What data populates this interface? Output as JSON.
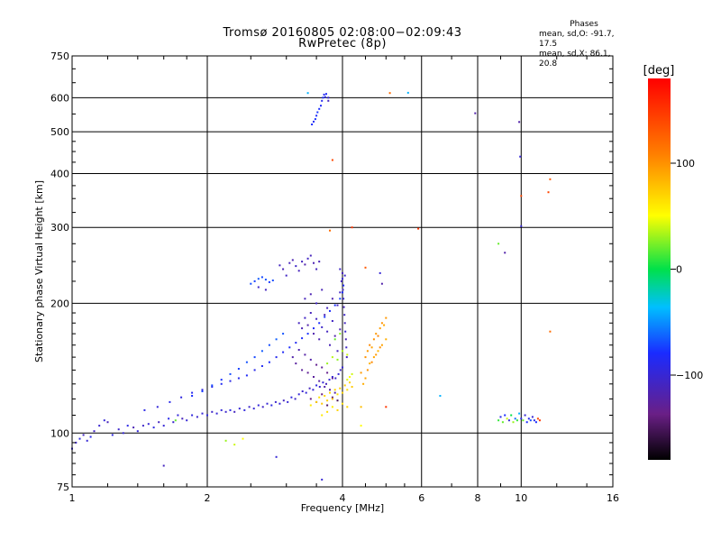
{
  "title": {
    "line1": "Tromsø 20160805 02:08:00−02:09:43",
    "line2": "RwPretec (8p)"
  },
  "phase_stats": {
    "heading": "Phases",
    "line_o": "mean, sd,O: -91.7, 17.5",
    "line_x": "mean, sd,X:  86.1, 20.8"
  },
  "colorbar": {
    "label": "[deg]",
    "ticks": [
      {
        "value": 100,
        "label": "100"
      },
      {
        "value": 0,
        "label": "0"
      },
      {
        "value": -100,
        "label": "−100"
      }
    ],
    "range": [
      -180,
      180
    ]
  },
  "chart_data": {
    "type": "scatter",
    "xlabel": "Frequency [MHz]",
    "ylabel": "Stationary phase Virtual Height [km]",
    "xscale": "log",
    "yscale": "log",
    "xlim": [
      1,
      16
    ],
    "ylim": [
      75,
      750
    ],
    "xticks": [
      {
        "value": 1,
        "label": "1"
      },
      {
        "value": 2,
        "label": "2"
      },
      {
        "value": 4,
        "label": "4"
      },
      {
        "value": 6,
        "label": "6"
      },
      {
        "value": 8,
        "label": "8"
      },
      {
        "value": 10,
        "label": "10"
      },
      {
        "value": 16,
        "label": "16"
      }
    ],
    "yticks": [
      {
        "value": 75,
        "label": "75"
      },
      {
        "value": 100,
        "label": "100"
      },
      {
        "value": 200,
        "label": "200"
      },
      {
        "value": 300,
        "label": "300"
      },
      {
        "value": 400,
        "label": "400"
      },
      {
        "value": 500,
        "label": "500"
      },
      {
        "value": 600,
        "label": "600"
      },
      {
        "value": 750,
        "label": "750"
      }
    ],
    "grid": true,
    "point_color_key": "phase [deg]",
    "points": [
      [
        1.0,
        92,
        -100
      ],
      [
        1.02,
        95,
        -105
      ],
      [
        1.04,
        97,
        -95
      ],
      [
        1.06,
        99,
        -110
      ],
      [
        1.08,
        96,
        -100
      ],
      [
        1.1,
        98,
        -90
      ],
      [
        1.12,
        101,
        -108
      ],
      [
        1.15,
        104,
        -102
      ],
      [
        1.18,
        107,
        -98
      ],
      [
        1.2,
        106,
        -112
      ],
      [
        1.23,
        99,
        -95
      ],
      [
        1.27,
        102,
        -104
      ],
      [
        1.3,
        100,
        -100
      ],
      [
        1.33,
        104,
        -92
      ],
      [
        1.37,
        103,
        -115
      ],
      [
        1.4,
        101,
        -98
      ],
      [
        1.44,
        104,
        -106
      ],
      [
        1.48,
        105,
        -100
      ],
      [
        1.52,
        103,
        -95
      ],
      [
        1.56,
        106,
        -110
      ],
      [
        1.6,
        104,
        -100
      ],
      [
        1.64,
        108,
        -90
      ],
      [
        1.68,
        106,
        -104
      ],
      [
        1.72,
        110,
        -98
      ],
      [
        1.76,
        108,
        -112
      ],
      [
        1.8,
        107,
        -100
      ],
      [
        1.85,
        110,
        -96
      ],
      [
        1.9,
        109,
        -104
      ],
      [
        1.95,
        111,
        -100
      ],
      [
        2.0,
        110,
        -94
      ],
      [
        2.05,
        112,
        -106
      ],
      [
        2.1,
        111,
        -100
      ],
      [
        2.15,
        113,
        -98
      ],
      [
        2.2,
        112,
        -104
      ],
      [
        2.25,
        113,
        -92
      ],
      [
        2.3,
        112,
        -110
      ],
      [
        2.36,
        114,
        -100
      ],
      [
        2.42,
        113,
        -96
      ],
      [
        2.48,
        115,
        -104
      ],
      [
        2.54,
        114,
        -100
      ],
      [
        2.6,
        116,
        -98
      ],
      [
        2.66,
        115,
        -108
      ],
      [
        2.72,
        117,
        -100
      ],
      [
        2.78,
        116,
        -94
      ],
      [
        2.84,
        118,
        -104
      ],
      [
        2.9,
        117,
        -100
      ],
      [
        2.96,
        119,
        -110
      ],
      [
        3.02,
        118,
        -100
      ],
      [
        3.08,
        121,
        -96
      ],
      [
        3.14,
        120,
        -106
      ],
      [
        3.2,
        123,
        -100
      ],
      [
        3.26,
        125,
        -104
      ],
      [
        3.32,
        124,
        -98
      ],
      [
        3.38,
        127,
        -110
      ],
      [
        3.44,
        126,
        -100
      ],
      [
        3.5,
        129,
        -94
      ],
      [
        3.56,
        128,
        -104
      ],
      [
        3.62,
        131,
        -100
      ],
      [
        3.68,
        130,
        -112
      ],
      [
        3.74,
        133,
        -100
      ],
      [
        3.8,
        135,
        -96
      ],
      [
        3.86,
        134,
        -104
      ],
      [
        3.92,
        137,
        -100
      ],
      [
        3.96,
        140,
        -110
      ],
      [
        4.0,
        142,
        -100
      ],
      [
        1.45,
        113,
        -92
      ],
      [
        1.55,
        115,
        -98
      ],
      [
        1.65,
        118,
        -90
      ],
      [
        1.75,
        121,
        -95
      ],
      [
        1.85,
        124,
        -88
      ],
      [
        1.95,
        126,
        -94
      ],
      [
        2.05,
        128,
        -90
      ],
      [
        2.15,
        130,
        -86
      ],
      [
        2.25,
        132,
        -92
      ],
      [
        2.35,
        134,
        -88
      ],
      [
        2.45,
        136,
        -84
      ],
      [
        2.55,
        140,
        -90
      ],
      [
        2.65,
        143,
        -86
      ],
      [
        2.75,
        146,
        -82
      ],
      [
        2.85,
        150,
        -88
      ],
      [
        2.95,
        154,
        -84
      ],
      [
        3.05,
        158,
        -80
      ],
      [
        3.15,
        162,
        -86
      ],
      [
        3.25,
        166,
        -82
      ],
      [
        3.35,
        170,
        -78
      ],
      [
        3.45,
        175,
        -84
      ],
      [
        3.55,
        180,
        -80
      ],
      [
        3.65,
        186,
        -76
      ],
      [
        3.75,
        192,
        -82
      ],
      [
        3.85,
        198,
        -78
      ],
      [
        3.95,
        205,
        -74
      ],
      [
        4.0,
        212,
        -80
      ],
      [
        4.02,
        220,
        -84
      ],
      [
        1.85,
        122,
        -80
      ],
      [
        1.95,
        125,
        -76
      ],
      [
        2.05,
        129,
        -72
      ],
      [
        2.15,
        133,
        -78
      ],
      [
        2.25,
        137,
        -70
      ],
      [
        2.35,
        141,
        -74
      ],
      [
        2.45,
        146,
        -68
      ],
      [
        2.55,
        150,
        -72
      ],
      [
        2.65,
        155,
        -66
      ],
      [
        2.75,
        160,
        -70
      ],
      [
        2.85,
        165,
        -64
      ],
      [
        2.95,
        170,
        -68
      ],
      [
        2.5,
        222,
        -70
      ],
      [
        2.55,
        225,
        -74
      ],
      [
        2.6,
        228,
        -66
      ],
      [
        2.65,
        230,
        -72
      ],
      [
        2.7,
        227,
        -68
      ],
      [
        2.75,
        224,
        -76
      ],
      [
        2.8,
        226,
        -70
      ],
      [
        2.6,
        218,
        -105
      ],
      [
        2.7,
        215,
        -110
      ],
      [
        2.9,
        245,
        -110
      ],
      [
        2.95,
        240,
        -115
      ],
      [
        3.0,
        232,
        -108
      ],
      [
        3.05,
        248,
        -112
      ],
      [
        3.1,
        252,
        -116
      ],
      [
        3.15,
        244,
        -106
      ],
      [
        3.2,
        238,
        -112
      ],
      [
        3.25,
        250,
        -110
      ],
      [
        3.3,
        246,
        -118
      ],
      [
        3.35,
        254,
        -108
      ],
      [
        3.4,
        258,
        -112
      ],
      [
        3.45,
        248,
        -116
      ],
      [
        3.5,
        240,
        -110
      ],
      [
        3.55,
        250,
        -114
      ],
      [
        3.2,
        180,
        -110
      ],
      [
        3.25,
        175,
        -115
      ],
      [
        3.3,
        185,
        -108
      ],
      [
        3.35,
        178,
        -120
      ],
      [
        3.4,
        190,
        -112
      ],
      [
        3.45,
        170,
        -118
      ],
      [
        3.5,
        184,
        -110
      ],
      [
        3.55,
        165,
        -116
      ],
      [
        3.6,
        176,
        -106
      ],
      [
        3.65,
        188,
        -118
      ],
      [
        3.7,
        172,
        -110
      ],
      [
        3.75,
        160,
        -114
      ],
      [
        3.8,
        182,
        -108
      ],
      [
        3.85,
        168,
        -120
      ],
      [
        3.9,
        155,
        -112
      ],
      [
        3.95,
        174,
        -116
      ],
      [
        3.1,
        150,
        -120
      ],
      [
        3.15,
        145,
        -125
      ],
      [
        3.2,
        156,
        -118
      ],
      [
        3.25,
        140,
        -128
      ],
      [
        3.3,
        152,
        -122
      ],
      [
        3.35,
        138,
        -130
      ],
      [
        3.4,
        148,
        -120
      ],
      [
        3.45,
        135,
        -126
      ],
      [
        3.5,
        144,
        -132
      ],
      [
        3.55,
        132,
        -122
      ],
      [
        3.6,
        142,
        -128
      ],
      [
        3.65,
        128,
        -120
      ],
      [
        3.7,
        138,
        -134
      ],
      [
        3.75,
        126,
        -124
      ],
      [
        3.8,
        134,
        -130
      ],
      [
        3.85,
        124,
        -122
      ],
      [
        3.3,
        205,
        -112
      ],
      [
        3.4,
        210,
        -116
      ],
      [
        3.5,
        200,
        -108
      ],
      [
        3.6,
        215,
        -114
      ],
      [
        3.7,
        195,
        -110
      ],
      [
        3.8,
        205,
        -118
      ],
      [
        3.9,
        198,
        -112
      ],
      [
        3.95,
        212,
        -108
      ],
      [
        4.0,
        228,
        -100
      ],
      [
        4.01,
        215,
        -110
      ],
      [
        4.02,
        205,
        -104
      ],
      [
        4.03,
        196,
        -112
      ],
      [
        4.04,
        188,
        -106
      ],
      [
        4.05,
        180,
        -110
      ],
      [
        4.06,
        172,
        -102
      ],
      [
        4.07,
        165,
        -114
      ],
      [
        4.08,
        158,
        -106
      ],
      [
        4.09,
        150,
        -110
      ],
      [
        3.95,
        240,
        -106
      ],
      [
        4.0,
        235,
        -112
      ],
      [
        4.05,
        232,
        -104
      ],
      [
        3.98,
        225,
        -108
      ],
      [
        3.4,
        120,
        -140
      ],
      [
        3.5,
        118,
        -145
      ],
      [
        3.6,
        123,
        -138
      ],
      [
        3.7,
        116,
        -148
      ],
      [
        3.8,
        121,
        -142
      ],
      [
        3.9,
        119,
        -150
      ],
      [
        3.4,
        116,
        60
      ],
      [
        3.5,
        118,
        70
      ],
      [
        3.55,
        121,
        64
      ],
      [
        3.6,
        117,
        76
      ],
      [
        3.65,
        122,
        68
      ],
      [
        3.7,
        119,
        72
      ],
      [
        3.75,
        124,
        66
      ],
      [
        3.8,
        120,
        78
      ],
      [
        3.85,
        126,
        70
      ],
      [
        3.9,
        123,
        62
      ],
      [
        3.95,
        127,
        74
      ],
      [
        4.0,
        124,
        68
      ],
      [
        4.05,
        129,
        76
      ],
      [
        4.1,
        126,
        64
      ],
      [
        4.15,
        131,
        70
      ],
      [
        4.2,
        128,
        74
      ],
      [
        4.1,
        133,
        44
      ],
      [
        4.15,
        135,
        50
      ],
      [
        4.2,
        137,
        40
      ],
      [
        3.6,
        110,
        60
      ],
      [
        3.7,
        112,
        66
      ],
      [
        3.8,
        115,
        58
      ],
      [
        3.9,
        113,
        70
      ],
      [
        4.0,
        117,
        62
      ],
      [
        4.1,
        115,
        68
      ],
      [
        3.7,
        145,
        30
      ],
      [
        3.8,
        150,
        36
      ],
      [
        3.9,
        148,
        28
      ],
      [
        4.0,
        155,
        34
      ],
      [
        4.1,
        152,
        40
      ],
      [
        3.85,
        165,
        20
      ],
      [
        3.95,
        170,
        26
      ],
      [
        4.5,
        150,
        100
      ],
      [
        4.55,
        155,
        96
      ],
      [
        4.6,
        160,
        104
      ],
      [
        4.65,
        158,
        92
      ],
      [
        4.7,
        165,
        100
      ],
      [
        4.75,
        170,
        96
      ],
      [
        4.8,
        168,
        106
      ],
      [
        4.85,
        175,
        94
      ],
      [
        4.9,
        180,
        100
      ],
      [
        4.95,
        178,
        90
      ],
      [
        5.0,
        185,
        98
      ],
      [
        4.6,
        145,
        86
      ],
      [
        4.7,
        150,
        90
      ],
      [
        4.8,
        155,
        84
      ],
      [
        4.9,
        160,
        92
      ],
      [
        5.0,
        165,
        86
      ],
      [
        4.55,
        140,
        100
      ],
      [
        4.65,
        146,
        104
      ],
      [
        4.75,
        152,
        96
      ],
      [
        4.85,
        158,
        100
      ],
      [
        4.45,
        130,
        88
      ],
      [
        4.5,
        134,
        92
      ],
      [
        4.4,
        138,
        96
      ],
      [
        3.42,
        520,
        -80
      ],
      [
        3.45,
        528,
        -85
      ],
      [
        3.48,
        535,
        -78
      ],
      [
        3.5,
        545,
        -82
      ],
      [
        3.52,
        555,
        -76
      ],
      [
        3.55,
        565,
        -80
      ],
      [
        3.58,
        575,
        -84
      ],
      [
        3.6,
        590,
        -88
      ],
      [
        3.62,
        600,
        -82
      ],
      [
        3.64,
        610,
        -86
      ],
      [
        3.66,
        602,
        -90
      ],
      [
        3.68,
        612,
        -84
      ],
      [
        3.35,
        615,
        -40
      ],
      [
        3.72,
        590,
        -110
      ],
      [
        3.72,
        600,
        -100
      ],
      [
        3.75,
        295,
        120
      ],
      [
        3.8,
        430,
        140
      ],
      [
        4.2,
        300,
        150
      ],
      [
        4.5,
        242,
        130
      ],
      [
        4.85,
        235,
        -100
      ],
      [
        4.9,
        222,
        -120
      ],
      [
        5.1,
        615,
        120
      ],
      [
        5.6,
        616,
        -40
      ],
      [
        5.9,
        298,
        150
      ],
      [
        6.6,
        122,
        -40
      ],
      [
        7.9,
        552,
        -120
      ],
      [
        9.9,
        527,
        -120
      ],
      [
        9.95,
        438,
        -100
      ],
      [
        10.0,
        302,
        -100
      ],
      [
        10.0,
        355,
        140
      ],
      [
        11.5,
        362,
        140
      ],
      [
        11.6,
        388,
        130
      ],
      [
        11.6,
        172,
        120
      ],
      [
        8.9,
        275,
        20
      ],
      [
        9.2,
        262,
        -120
      ],
      [
        8.9,
        107,
        10
      ],
      [
        9.0,
        109,
        -90
      ],
      [
        9.1,
        106,
        20
      ],
      [
        9.2,
        110,
        -80
      ],
      [
        9.3,
        108,
        40
      ],
      [
        9.4,
        107,
        -100
      ],
      [
        9.5,
        110,
        0
      ],
      [
        9.6,
        106,
        30
      ],
      [
        9.7,
        108,
        -60
      ],
      [
        9.8,
        107,
        10
      ],
      [
        9.9,
        111,
        -40
      ],
      [
        10.0,
        108,
        -90
      ],
      [
        10.1,
        107,
        20
      ],
      [
        10.2,
        110,
        -100
      ],
      [
        10.3,
        106,
        -80
      ],
      [
        10.4,
        108,
        -90
      ],
      [
        10.5,
        107,
        -70
      ],
      [
        10.6,
        109,
        -100
      ],
      [
        10.7,
        107,
        -90
      ],
      [
        10.8,
        106,
        -80
      ],
      [
        10.9,
        108,
        140
      ],
      [
        11.0,
        107,
        150
      ],
      [
        1.6,
        84,
        -110
      ],
      [
        2.2,
        96,
        30
      ],
      [
        2.3,
        94,
        40
      ],
      [
        2.4,
        97,
        50
      ],
      [
        2.85,
        88,
        -100
      ],
      [
        3.6,
        78,
        -100
      ],
      [
        4.4,
        104,
        50
      ],
      [
        4.4,
        115,
        80
      ],
      [
        5.0,
        115,
        150
      ],
      [
        1.7,
        107,
        20
      ]
    ]
  }
}
